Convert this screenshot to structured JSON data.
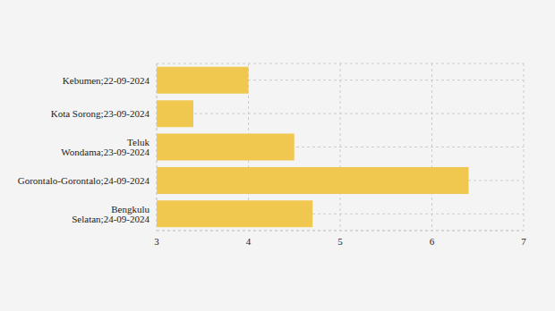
{
  "chart_data": {
    "type": "bar",
    "orientation": "horizontal",
    "categories": [
      "Kebumen;22-09-2024",
      "Kota Sorong;23-09-2024",
      "Teluk Wondama;23-09-2024",
      "Gorontalo-Gorontalo;24-09-2024",
      "Bengkulu Selatan;24-09-2024"
    ],
    "values": [
      4.0,
      3.4,
      4.5,
      6.4,
      4.7
    ],
    "color": "#f0c850",
    "xlim": [
      3,
      7
    ],
    "xticks": [
      3,
      4,
      5,
      6,
      7
    ],
    "grid": true
  }
}
